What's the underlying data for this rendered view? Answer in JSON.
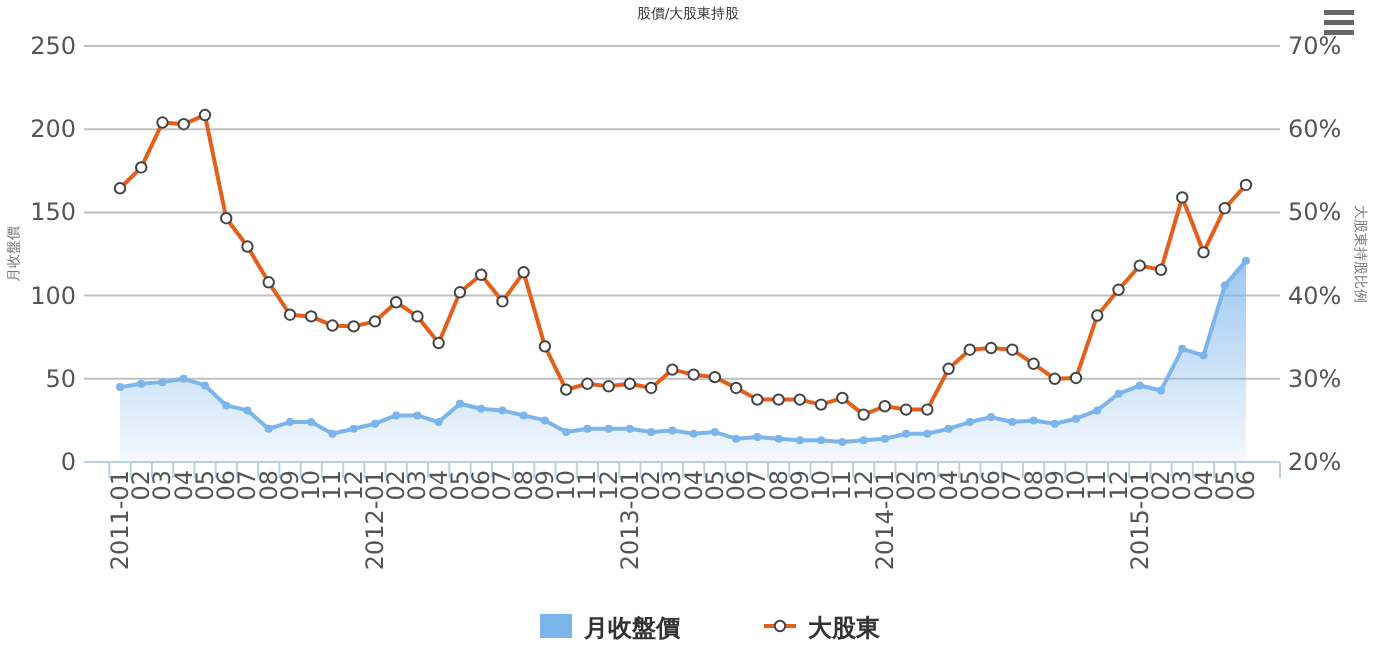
{
  "chart_data": {
    "type": "line",
    "title": "股價/大股東持股",
    "ylabel": "月收盤價",
    "y2label": "大股東持股比例",
    "categories": [
      "2011-01",
      "02",
      "03",
      "04",
      "05",
      "06",
      "07",
      "08",
      "09",
      "10",
      "11",
      "12",
      "2012-01",
      "02",
      "03",
      "04",
      "05",
      "06",
      "07",
      "08",
      "09",
      "10",
      "11",
      "12",
      "2013-01",
      "02",
      "03",
      "04",
      "05",
      "06",
      "07",
      "08",
      "09",
      "10",
      "11",
      "12",
      "2014-01",
      "02",
      "03",
      "04",
      "05",
      "06",
      "07",
      "08",
      "09",
      "10",
      "11",
      "12",
      "2015-01",
      "02",
      "03",
      "04",
      "05",
      "06"
    ],
    "series": [
      {
        "name": "月收盤價",
        "type": "area",
        "color": "#7cb5ec",
        "values": [
          45,
          47,
          48,
          50,
          46,
          34,
          31,
          20,
          24,
          24,
          17,
          20,
          23,
          28,
          28,
          24,
          35,
          32,
          31,
          28,
          25,
          18,
          20,
          20,
          20,
          18,
          19,
          17,
          18,
          14,
          15,
          14,
          13,
          13,
          12,
          13,
          14,
          17,
          17,
          20,
          24,
          27,
          24,
          25,
          23,
          26,
          31,
          41,
          46,
          43,
          68,
          64,
          106,
          121
        ]
      },
      {
        "name": "大股東",
        "axis": "y2",
        "color": "#e4601a",
        "values": [
          52.9,
          55.4,
          60.8,
          60.6,
          61.7,
          49.3,
          45.9,
          41.6,
          37.7,
          37.5,
          36.4,
          36.3,
          36.9,
          39.2,
          37.5,
          34.3,
          40.4,
          42.5,
          39.3,
          42.8,
          33.9,
          28.7,
          29.4,
          29.1,
          29.4,
          28.9,
          31.1,
          30.5,
          30.2,
          28.9,
          27.5,
          27.5,
          27.5,
          26.9,
          27.7,
          25.7,
          26.7,
          26.3,
          26.3,
          31.2,
          33.5,
          33.7,
          33.5,
          31.8,
          30.0,
          30.1,
          37.6,
          40.7,
          43.6,
          43.1,
          51.8,
          45.2,
          50.5,
          53.3
        ]
      }
    ],
    "ylim": [
      0,
      250
    ],
    "yticks": [
      0,
      50,
      100,
      150,
      200,
      250
    ],
    "y2lim": [
      20,
      70
    ],
    "y2ticks": [
      {
        "value": 20,
        "label": "20%"
      },
      {
        "value": 30,
        "label": "30%"
      },
      {
        "value": 40,
        "label": "40%"
      },
      {
        "value": 50,
        "label": "50%"
      },
      {
        "value": 60,
        "label": "60%"
      },
      {
        "value": 70,
        "label": "70%"
      }
    ],
    "grid": "y",
    "legend": "bottom",
    "marker": "circle"
  }
}
